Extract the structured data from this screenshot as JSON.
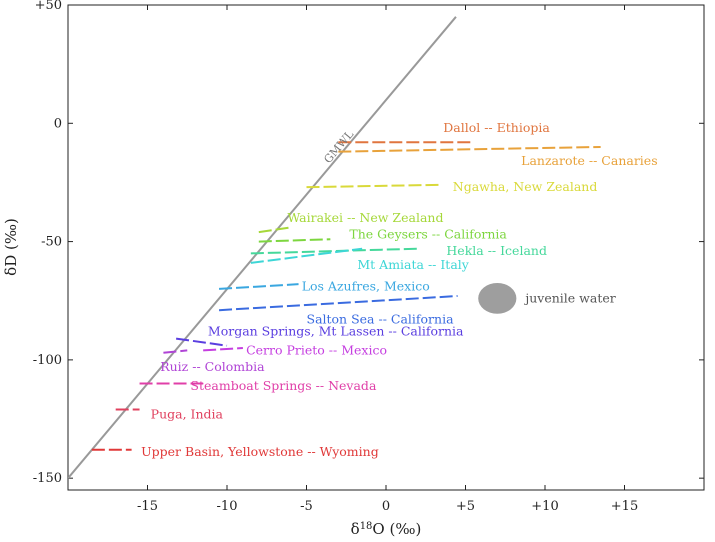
{
  "chart_data": {
    "type": "line",
    "xlabel": {
      "prefix": "δ",
      "sup": "18",
      "suffix": "O (‰)"
    },
    "ylabel": "δD (‰)",
    "xlim": [
      -20,
      20
    ],
    "ylim": [
      -155,
      50
    ],
    "x_ticks": [
      {
        "value": -15,
        "label": "-15"
      },
      {
        "value": -10,
        "label": "-10"
      },
      {
        "value": -5,
        "label": "-5"
      },
      {
        "value": 0,
        "label": "0"
      },
      {
        "value": 5,
        "label": "+5"
      },
      {
        "value": 10,
        "label": "+10"
      },
      {
        "value": 15,
        "label": "+15"
      }
    ],
    "y_ticks": [
      {
        "value": 50,
        "label": "+50"
      },
      {
        "value": 0,
        "label": "0"
      },
      {
        "value": -50,
        "label": "-50"
      },
      {
        "value": -100,
        "label": "-100"
      },
      {
        "value": -150,
        "label": "-150"
      }
    ],
    "gmwl": {
      "label": "GMWL",
      "x": [
        -20,
        4.4
      ],
      "y": [
        -150,
        45
      ],
      "color": "#999999"
    },
    "juvenile_water": {
      "label": "juvenile water",
      "x": 7,
      "y": -74,
      "rx": 1.2,
      "ry": 6.5,
      "color": "#9e9e9e"
    },
    "series": [
      {
        "name": "Dallol -- Ethiopia",
        "x": [
          -3,
          5.5
        ],
        "y": [
          -8,
          -8
        ],
        "color": "#e0753f",
        "label_x": 3.6,
        "label_y": -2
      },
      {
        "name": "Lanzarote -- Canaries",
        "x": [
          -3,
          13.5
        ],
        "y": [
          -12,
          -10
        ],
        "color": "#e8a23b",
        "label_x": 8.5,
        "label_y": -16
      },
      {
        "name": "Ngawha, New Zealand",
        "x": [
          -5,
          3.5
        ],
        "y": [
          -27,
          -26
        ],
        "color": "#d9d93a",
        "label_x": 4.2,
        "label_y": -27
      },
      {
        "name": "Wairakei -- New Zealand",
        "x": [
          -8,
          -6
        ],
        "y": [
          -46,
          -44
        ],
        "color": "#a6d83a",
        "label_x": -6.2,
        "label_y": -40
      },
      {
        "name": "The Geysers -- California",
        "x": [
          -8,
          -3.5
        ],
        "y": [
          -50,
          -49
        ],
        "color": "#7dd63f",
        "label_x": -2.3,
        "label_y": -47
      },
      {
        "name": "Hekla -- Iceland",
        "x": [
          -8.5,
          2
        ],
        "y": [
          -55,
          -53
        ],
        "color": "#45d89b",
        "label_x": 3.8,
        "label_y": -54
      },
      {
        "name": "Mt Amiata -- Italy",
        "x": [
          -8.5,
          -1.5
        ],
        "y": [
          -59,
          -53
        ],
        "color": "#3dd6d6",
        "label_x": -1.8,
        "label_y": -60
      },
      {
        "name": "Los Azufres, Mexico",
        "x": [
          -10.5,
          -5.5
        ],
        "y": [
          -70,
          -68
        ],
        "color": "#3aa7e0",
        "label_x": -5.3,
        "label_y": -69
      },
      {
        "name": "Salton Sea -- California",
        "x": [
          -10.5,
          4.5
        ],
        "y": [
          -79,
          -73
        ],
        "color": "#3a6be0",
        "label_x": -5,
        "label_y": -83
      },
      {
        "name": "Morgan Springs, Mt Lassen -- California",
        "x": [
          -13.2,
          -10
        ],
        "y": [
          -91,
          -94
        ],
        "color": "#5a3ee0",
        "label_x": -11.2,
        "label_y": -88
      },
      {
        "name": "Cerro Prieto -- Mexico",
        "x": [
          -11.5,
          -9
        ],
        "y": [
          -96,
          -95
        ],
        "color": "#c53ee0",
        "label_x": -8.8,
        "label_y": -96
      },
      {
        "name": "Ruiz -- Colombia",
        "x": [
          -14,
          -12.5
        ],
        "y": [
          -97,
          -96
        ],
        "color": "#b044d6",
        "label_x": -14.2,
        "label_y": -103
      },
      {
        "name": "Steamboat Springs -- Nevada",
        "x": [
          -15.5,
          -11.5
        ],
        "y": [
          -110,
          -110
        ],
        "color": "#e03fa8",
        "label_x": -12.3,
        "label_y": -111
      },
      {
        "name": "Puga, India",
        "x": [
          -17,
          -15.5
        ],
        "y": [
          -121,
          -121
        ],
        "color": "#e0405e",
        "label_x": -14.8,
        "label_y": -123
      },
      {
        "name": "Upper Basin, Yellowstone -- Wyoming",
        "x": [
          -18.5,
          -16
        ],
        "y": [
          -138,
          -138
        ],
        "color": "#e03838",
        "label_x": -15.4,
        "label_y": -139
      }
    ]
  }
}
